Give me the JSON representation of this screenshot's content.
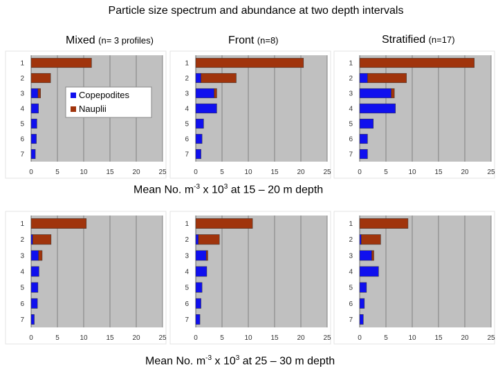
{
  "title": "Particle size spectrum and abundance at two depth intervals",
  "columns": [
    {
      "name": "Mixed",
      "n_label": "(n= 3 profiles)"
    },
    {
      "name": "Front",
      "n_label": "(n=8)"
    },
    {
      "name": "Stratified",
      "n_label": "(n=17)"
    }
  ],
  "depth_captions": [
    {
      "prefix": "Mean No. m",
      "exp1": "-3",
      "mid": " x 10",
      "exp2": "3",
      "suffix": "  at 15 – 20 m depth"
    },
    {
      "prefix": "Mean No. m",
      "exp1": "-3",
      "mid": " x 10",
      "exp2": "3",
      "suffix": "  at 25 – 30 m depth"
    }
  ],
  "legend": {
    "copepodites": "Copepodites",
    "nauplii": "Nauplii"
  },
  "colors": {
    "copepodites": "#1010ee",
    "nauplii": "#a0340c",
    "plot_bg": "#c0c0c0",
    "grid": "#808080"
  },
  "chart_data": [
    {
      "type": "bar",
      "orientation": "horizontal",
      "stacked": true,
      "column": "Mixed",
      "depth": "15 – 20 m",
      "categories": [
        "1",
        "2",
        "3",
        "4",
        "5",
        "6",
        "7"
      ],
      "series": [
        {
          "name": "Copepodites",
          "values": [
            0,
            0,
            1.3,
            1.4,
            1.1,
            1.0,
            0.8
          ]
        },
        {
          "name": "Nauplii",
          "values": [
            11.5,
            3.7,
            0.5,
            0,
            0,
            0,
            0
          ]
        }
      ],
      "xlim": [
        0,
        25
      ],
      "xticks": [
        0,
        5,
        10,
        15,
        20,
        25
      ],
      "legend": "Copepodites, Nauplii"
    },
    {
      "type": "bar",
      "orientation": "horizontal",
      "stacked": true,
      "column": "Front",
      "depth": "15 – 20 m",
      "categories": [
        "1",
        "2",
        "3",
        "4",
        "5",
        "6",
        "7"
      ],
      "series": [
        {
          "name": "Copepodites",
          "values": [
            0,
            1.0,
            3.5,
            4.0,
            1.5,
            1.2,
            1.0
          ]
        },
        {
          "name": "Nauplii",
          "values": [
            20.5,
            6.7,
            0.5,
            0,
            0,
            0,
            0
          ]
        }
      ],
      "xlim": [
        0,
        25
      ],
      "xticks": [
        0,
        5,
        10,
        15,
        20,
        25
      ]
    },
    {
      "type": "bar",
      "orientation": "horizontal",
      "stacked": true,
      "column": "Stratified",
      "depth": "15 – 20 m",
      "categories": [
        "1",
        "2",
        "3",
        "4",
        "5",
        "6",
        "7"
      ],
      "series": [
        {
          "name": "Copepodites",
          "values": [
            0,
            1.5,
            6.0,
            6.8,
            2.6,
            1.5,
            1.5
          ]
        },
        {
          "name": "Nauplii",
          "values": [
            21.8,
            7.4,
            0.6,
            0,
            0,
            0,
            0
          ]
        }
      ],
      "xlim": [
        0,
        25
      ],
      "xticks": [
        0,
        5,
        10,
        15,
        20,
        25
      ]
    },
    {
      "type": "bar",
      "orientation": "horizontal",
      "stacked": true,
      "column": "Mixed",
      "depth": "25 – 30 m",
      "categories": [
        "1",
        "2",
        "3",
        "4",
        "5",
        "6",
        "7"
      ],
      "series": [
        {
          "name": "Copepodites",
          "values": [
            0,
            0.3,
            1.4,
            1.5,
            1.3,
            1.2,
            0.6
          ]
        },
        {
          "name": "Nauplii",
          "values": [
            10.5,
            3.5,
            0.7,
            0,
            0,
            0,
            0
          ]
        }
      ],
      "xlim": [
        0,
        25
      ],
      "xticks": [
        0,
        5,
        10,
        15,
        20,
        25
      ]
    },
    {
      "type": "bar",
      "orientation": "horizontal",
      "stacked": true,
      "column": "Front",
      "depth": "25 – 30 m",
      "categories": [
        "1",
        "2",
        "3",
        "4",
        "5",
        "6",
        "7"
      ],
      "series": [
        {
          "name": "Copepodites",
          "values": [
            0,
            0.5,
            2.0,
            2.1,
            1.2,
            1.0,
            0.8
          ]
        },
        {
          "name": "Nauplii",
          "values": [
            10.8,
            4.0,
            0.3,
            0,
            0,
            0,
            0
          ]
        }
      ],
      "xlim": [
        0,
        25
      ],
      "xticks": [
        0,
        5,
        10,
        15,
        20,
        25
      ]
    },
    {
      "type": "bar",
      "orientation": "horizontal",
      "stacked": true,
      "column": "Stratified",
      "depth": "25 – 30 m",
      "categories": [
        "1",
        "2",
        "3",
        "4",
        "5",
        "6",
        "7"
      ],
      "series": [
        {
          "name": "Copepodites",
          "values": [
            0,
            0.3,
            2.3,
            3.6,
            1.3,
            0.9,
            0.7
          ]
        },
        {
          "name": "Nauplii",
          "values": [
            9.2,
            3.7,
            0.4,
            0,
            0,
            0,
            0
          ]
        }
      ],
      "xlim": [
        0,
        25
      ],
      "xticks": [
        0,
        5,
        10,
        15,
        20,
        25
      ]
    }
  ]
}
